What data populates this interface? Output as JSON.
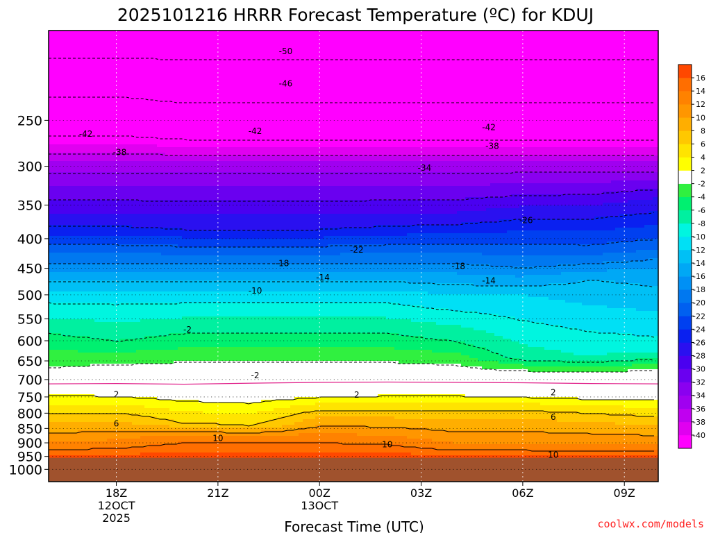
{
  "chart_data": {
    "type": "heatmap",
    "title": "2025101216 HRRR Forecast Temperature (ºC) for KDUJ",
    "xlabel": "Forecast Time (UTC)",
    "ylabel": "",
    "x_range_hours": [
      16,
      34
    ],
    "y_range_hpa": [
      175,
      1050
    ],
    "y_scale": "log",
    "pressure_ticks": [
      250,
      300,
      350,
      400,
      450,
      500,
      550,
      600,
      650,
      700,
      750,
      800,
      850,
      900,
      950,
      1000
    ],
    "time_ticks": [
      {
        "hour": 18,
        "lines": [
          "18Z",
          "12OCT",
          "2025"
        ]
      },
      {
        "hour": 21,
        "lines": [
          "21Z"
        ]
      },
      {
        "hour": 24,
        "lines": [
          "00Z",
          "13OCT"
        ]
      },
      {
        "hour": 27,
        "lines": [
          "03Z"
        ]
      },
      {
        "hour": 30,
        "lines": [
          "06Z"
        ]
      },
      {
        "hour": 33,
        "lines": [
          "09Z"
        ]
      }
    ],
    "colorbar": {
      "levels": [
        -42,
        -40,
        -38,
        -36,
        -34,
        -32,
        -30,
        -28,
        -26,
        -24,
        -22,
        -20,
        -18,
        -16,
        -14,
        -12,
        -10,
        -8,
        -6,
        -4,
        -2,
        2,
        4,
        6,
        8,
        10,
        12,
        14,
        16,
        18
      ],
      "colors": [
        "#ff00ff",
        "#e000f0",
        "#c000f0",
        "#a000f0",
        "#8a00f0",
        "#6a00f0",
        "#4a00f0",
        "#2a10f0",
        "#0a20f0",
        "#0040f0",
        "#0060f0",
        "#0078f0",
        "#0090f5",
        "#00a8f5",
        "#00c0f5",
        "#00e0f5",
        "#00f5e0",
        "#00f0a0",
        "#00f070",
        "#30f040",
        "#ffffff",
        "#ffff00",
        "#ffe400",
        "#ffc800",
        "#ffae00",
        "#ff9600",
        "#ff8200",
        "#ff6e00",
        "#ff4800"
      ],
      "tick_labels": [
        -40,
        -38,
        -36,
        -34,
        -32,
        -30,
        -28,
        -26,
        -24,
        -22,
        -20,
        -18,
        -16,
        -14,
        -12,
        -10,
        -8,
        -6,
        -4,
        -2,
        2,
        4,
        6,
        8,
        10,
        12,
        14,
        16
      ]
    },
    "ground_color": "#a0522d",
    "freezing_line_color": "#e0208a",
    "freezing_line_p": [
      712,
      711,
      713,
      710,
      708,
      707,
      708,
      709,
      711,
      712
    ],
    "hours": [
      16,
      18,
      20,
      22,
      24,
      26,
      28,
      30,
      32,
      34
    ],
    "profiles": [
      {
        "t": [
          -52,
          -42,
          -35,
          -26,
          -18,
          -11,
          -5,
          -1,
          1,
          6,
          12,
          17
        ],
        "p": [
          180,
          265,
          300,
          380,
          440,
          500,
          600,
          690,
          730,
          800,
          900,
          960
        ]
      },
      {
        "t": [
          -52,
          -42,
          -35,
          -26,
          -18,
          -11,
          -6,
          0,
          1,
          7,
          13,
          18
        ],
        "p": [
          180,
          265,
          300,
          380,
          440,
          500,
          600,
          690,
          735,
          810,
          905,
          970
        ]
      },
      {
        "t": [
          -52,
          -43,
          -35,
          -26,
          -18,
          -11,
          -5,
          0,
          1,
          6,
          13,
          18
        ],
        "p": [
          180,
          265,
          300,
          385,
          440,
          500,
          600,
          690,
          745,
          830,
          880,
          970
        ]
      },
      {
        "t": [
          -52,
          -43,
          -35,
          -26,
          -18,
          -11,
          -5,
          0,
          1,
          6,
          13,
          18
        ],
        "p": [
          180,
          265,
          300,
          385,
          440,
          500,
          600,
          690,
          750,
          840,
          880,
          970
        ]
      },
      {
        "t": [
          -52,
          -43,
          -35,
          -26,
          -18,
          -11,
          -5,
          0,
          1,
          7,
          13,
          17
        ],
        "p": [
          180,
          265,
          300,
          385,
          440,
          500,
          600,
          690,
          740,
          800,
          880,
          950
        ]
      },
      {
        "t": [
          -52,
          -43,
          -35,
          -26,
          -18,
          -11,
          -5,
          0,
          1,
          7,
          13,
          17
        ],
        "p": [
          180,
          265,
          300,
          380,
          440,
          500,
          600,
          690,
          735,
          800,
          890,
          950
        ]
      },
      {
        "t": [
          -52,
          -43,
          -35,
          -27,
          -18,
          -12,
          -6,
          0,
          1,
          7,
          12,
          16
        ],
        "p": [
          180,
          265,
          300,
          370,
          440,
          500,
          600,
          690,
          735,
          800,
          900,
          950
        ]
      },
      {
        "t": [
          -52,
          -43,
          -35,
          -27,
          -19,
          -12,
          -7,
          0,
          1,
          7,
          12,
          16
        ],
        "p": [
          180,
          265,
          300,
          360,
          440,
          500,
          640,
          690,
          740,
          800,
          900,
          950
        ]
      },
      {
        "t": [
          -52,
          -43,
          -35,
          -28,
          -21,
          -14,
          -8,
          0,
          1,
          7,
          12,
          16
        ],
        "p": [
          180,
          265,
          300,
          350,
          420,
          470,
          640,
          690,
          745,
          810,
          905,
          950
        ]
      },
      {
        "t": [
          -52,
          -43,
          -35,
          -28,
          -22,
          -15,
          -9,
          0,
          1,
          6,
          12,
          16
        ],
        "p": [
          180,
          265,
          300,
          340,
          400,
          460,
          620,
          690,
          745,
          810,
          905,
          950
        ]
      }
    ],
    "contour_labels": [
      {
        "text": "-50",
        "hour": 23.0,
        "p": 190
      },
      {
        "text": "-46",
        "hour": 23.0,
        "p": 216
      },
      {
        "text": "-42",
        "hour": 17.1,
        "p": 264
      },
      {
        "text": "-42",
        "hour": 22.1,
        "p": 261
      },
      {
        "text": "-42",
        "hour": 29.0,
        "p": 257
      },
      {
        "text": "-38",
        "hour": 18.1,
        "p": 284
      },
      {
        "text": "-38",
        "hour": 29.1,
        "p": 277
      },
      {
        "text": "-34",
        "hour": 27.1,
        "p": 302
      },
      {
        "text": "-26",
        "hour": 30.1,
        "p": 372
      },
      {
        "text": "-22",
        "hour": 25.1,
        "p": 418
      },
      {
        "text": "-18",
        "hour": 22.9,
        "p": 441
      },
      {
        "text": "-18",
        "hour": 28.1,
        "p": 446
      },
      {
        "text": "-14",
        "hour": 24.1,
        "p": 467
      },
      {
        "text": "-14",
        "hour": 29.0,
        "p": 473
      },
      {
        "text": "-10",
        "hour": 22.1,
        "p": 492
      },
      {
        "text": "-2",
        "hour": 20.1,
        "p": 574
      },
      {
        "text": "-2",
        "hour": 22.1,
        "p": 689
      },
      {
        "text": "2",
        "hour": 18.0,
        "p": 743
      },
      {
        "text": "2",
        "hour": 25.1,
        "p": 744
      },
      {
        "text": "2",
        "hour": 30.9,
        "p": 737
      },
      {
        "text": "6",
        "hour": 18.0,
        "p": 834
      },
      {
        "text": "6",
        "hour": 30.9,
        "p": 813
      },
      {
        "text": "10",
        "hour": 21.0,
        "p": 884
      },
      {
        "text": "10",
        "hour": 26.0,
        "p": 906
      },
      {
        "text": "10",
        "hour": 30.9,
        "p": 944
      }
    ]
  },
  "footer": {
    "credit": "coolwx.com/models"
  }
}
